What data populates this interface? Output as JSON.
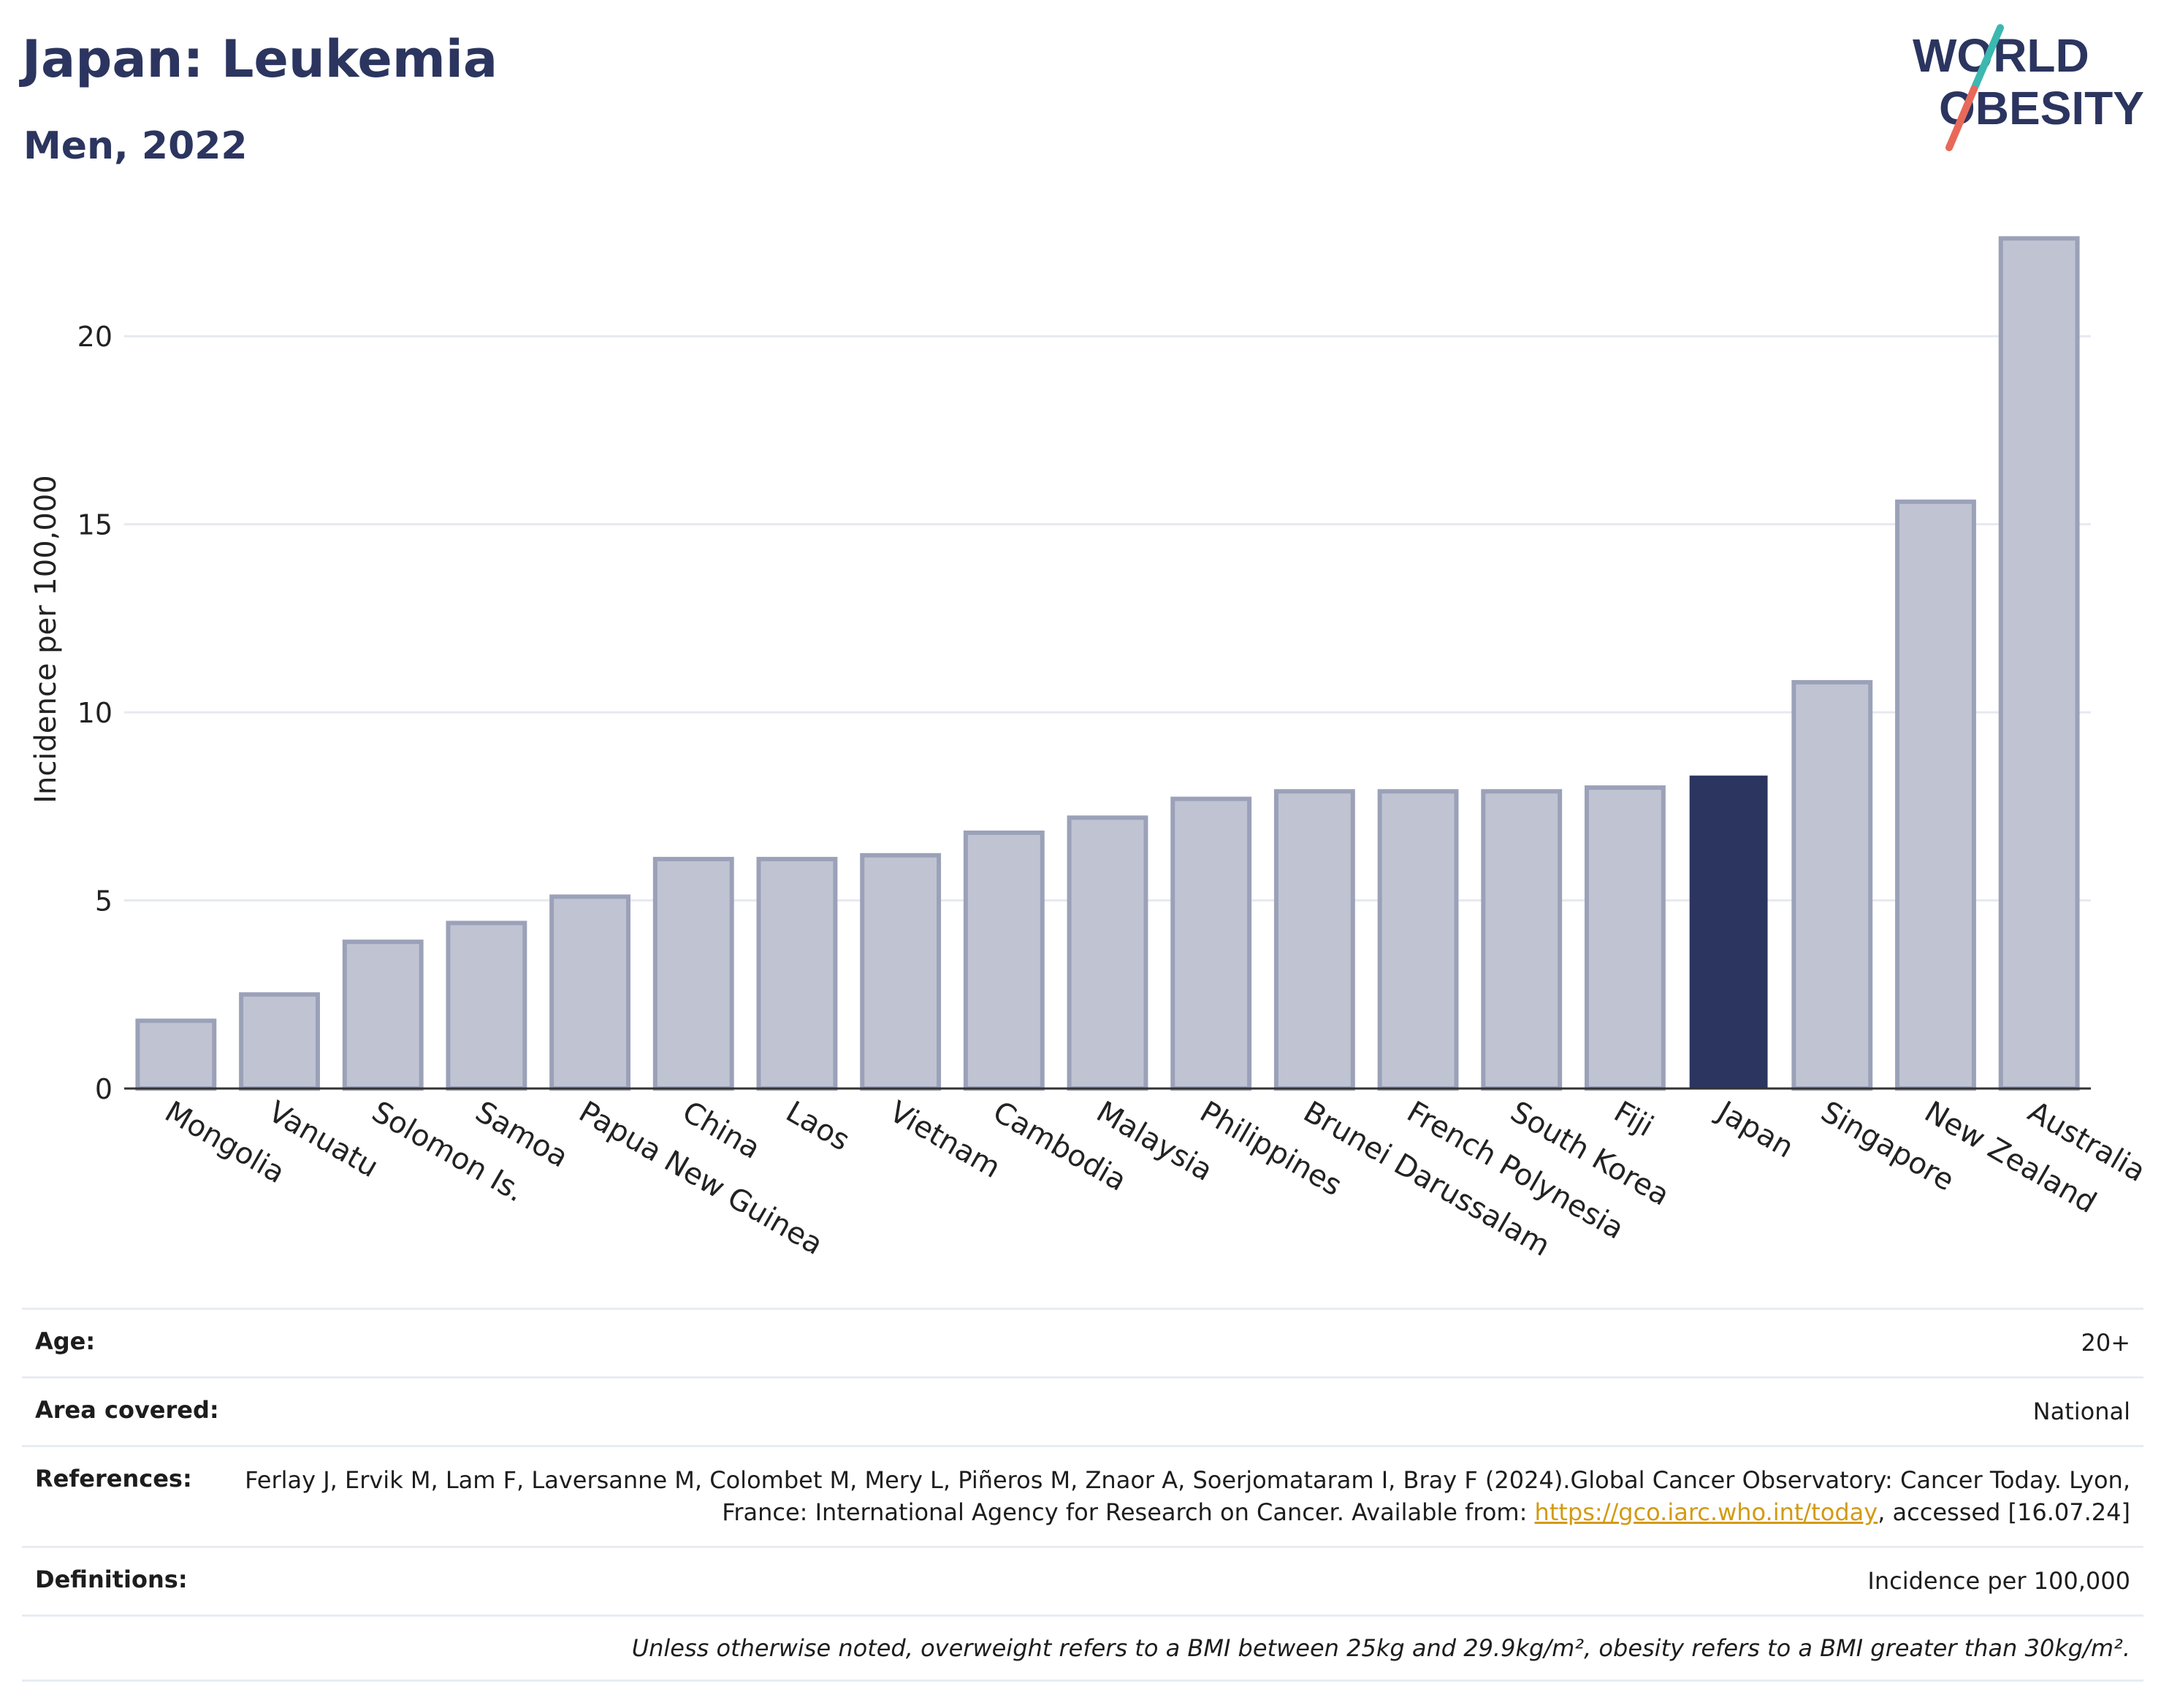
{
  "header": {
    "title": "Japan: Leukemia",
    "subtitle": "Men, 2022"
  },
  "logo": {
    "line1": "WORLD",
    "line2": "OBESITY",
    "colors": {
      "text": "#2b355f",
      "slash_top": "#3bb8b0",
      "slash_bottom": "#e8695a"
    }
  },
  "chart_data": {
    "type": "bar",
    "ylabel": "Incidence per 100,000",
    "ylim": [
      0,
      23.5
    ],
    "yticks": [
      0,
      5,
      10,
      15,
      20
    ],
    "grid": true,
    "categories": [
      "Mongolia",
      "Vanuatu",
      "Solomon Is.",
      "Samoa",
      "Papua New Guinea",
      "China",
      "Laos",
      "Vietnam",
      "Cambodia",
      "Malaysia",
      "Philippines",
      "Brunei Darussalam",
      "French Polynesia",
      "South Korea",
      "Fiji",
      "Japan",
      "Singapore",
      "New Zealand",
      "Australia"
    ],
    "values": [
      1.8,
      2.5,
      3.9,
      4.4,
      5.1,
      6.1,
      6.1,
      6.2,
      6.8,
      7.2,
      7.7,
      7.9,
      7.9,
      7.9,
      8.0,
      8.3,
      10.8,
      15.6,
      22.6
    ],
    "highlight": "Japan",
    "colors": {
      "bar": "#c0c4d2",
      "bar_border": "#9ba1b8",
      "highlight": "#2b355f",
      "grid": "#e6e9f0",
      "axis": "#333333"
    }
  },
  "info": {
    "age_label": "Age:",
    "age_value": "20+",
    "area_label": "Area covered:",
    "area_value": "National",
    "references_label": "References:",
    "references_text_1": "Ferlay J, Ervik M, Lam F, Laversanne M, Colombet M, Mery L, Piñeros M, Znaor A, Soerjomataram I, Bray F (2024).Global Cancer Observatory: Cancer Today. Lyon, France: International Agency for Research on Cancer. Available from: ",
    "references_link": "https://gco.iarc.who.int/today",
    "references_text_2": ", accessed [16.07.24]",
    "definitions_label": "Definitions:",
    "definitions_value": "Incidence per 100,000",
    "footnote": "Unless otherwise noted, overweight refers to a BMI between 25kg and 29.9kg/m², obesity refers to a BMI greater than 30kg/m²."
  }
}
